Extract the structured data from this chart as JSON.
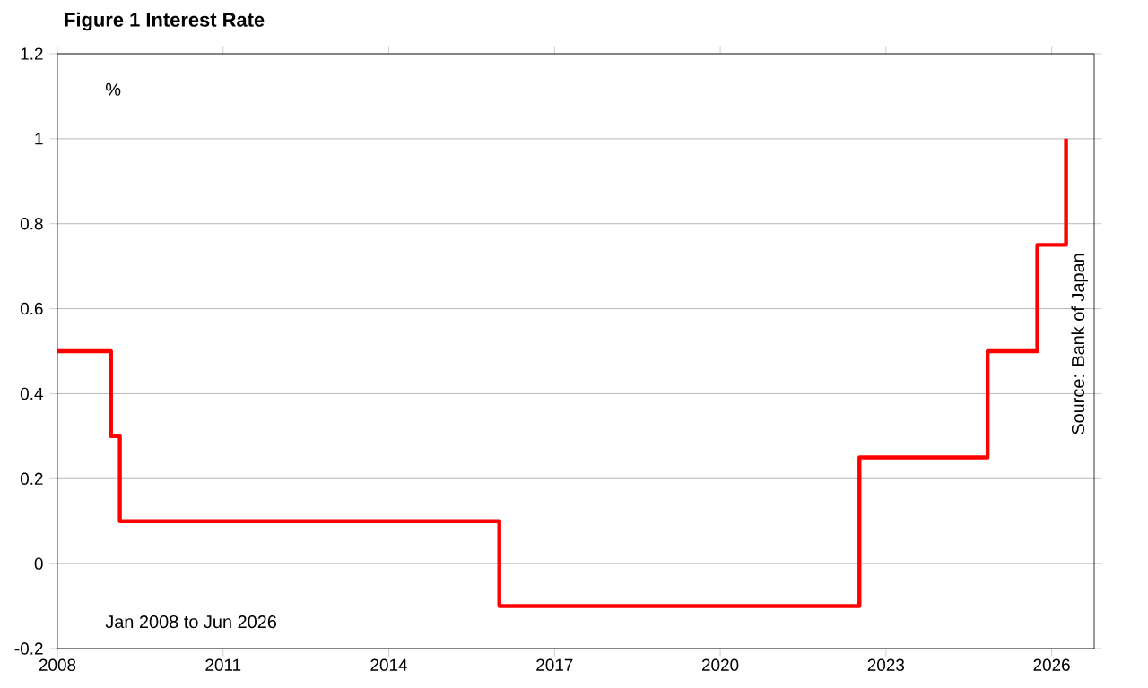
{
  "chart_data": {
    "type": "step",
    "title": "Figure 1 Interest Rate",
    "annotations": [
      "%",
      "Jan 2008 to Jun 2026",
      "Source: Bank of Japan"
    ],
    "series": [
      {
        "color": "#ff0000",
        "x": [
          2008,
          2008.97,
          2009.13,
          2016.0,
          2022.52,
          2024.84,
          2025.74,
          2026.26
        ],
        "values": [
          0.5,
          0.3,
          0.1,
          -0.1,
          0.25,
          0.5,
          0.75,
          1.0
        ]
      }
    ],
    "xlim": [
      2008,
      2026.77
    ],
    "xticks": [
      2008,
      2011,
      2014,
      2017,
      2020,
      2023,
      2026
    ],
    "ylim": [
      -0.2,
      1.2
    ],
    "yticks": [
      -0.2,
      0,
      0.2,
      0.4,
      0.6,
      0.8,
      1,
      1.2
    ],
    "grid": "y",
    "marker": "none",
    "line_style": "solid"
  }
}
